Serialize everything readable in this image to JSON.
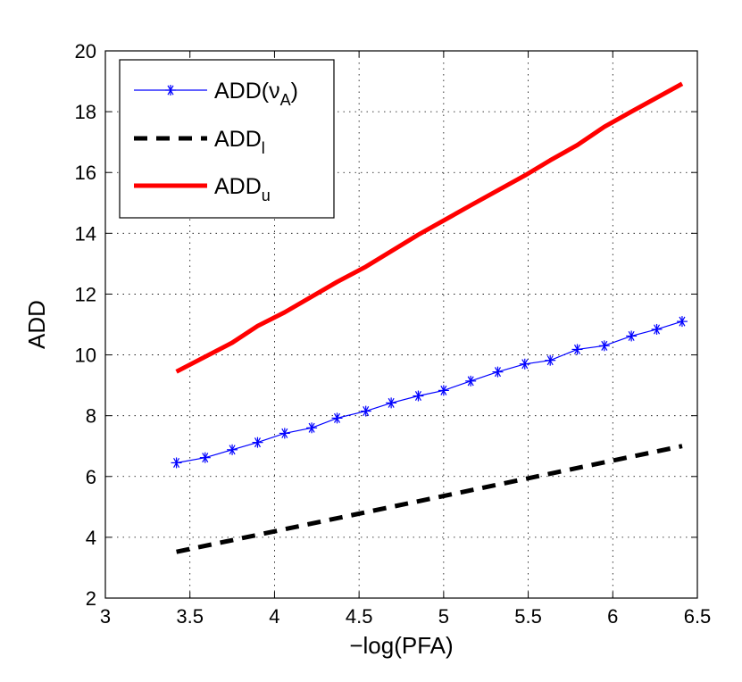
{
  "chart_data": {
    "type": "line",
    "xlabel": "−log(PFA)",
    "ylabel": "ADD",
    "xlim": [
      3,
      6.5
    ],
    "ylim": [
      2,
      20
    ],
    "xticks": [
      3,
      3.5,
      4,
      4.5,
      5,
      5.5,
      6,
      6.5
    ],
    "xtick_labels": [
      "3",
      "3.5",
      "4",
      "4.5",
      "5",
      "5.5",
      "6",
      "6.5"
    ],
    "yticks": [
      2,
      4,
      6,
      8,
      10,
      12,
      14,
      16,
      18,
      20
    ],
    "ytick_labels": [
      "2",
      "4",
      "6",
      "8",
      "10",
      "12",
      "14",
      "16",
      "18",
      "20"
    ],
    "grid": true,
    "legend_position": "top-left",
    "series": [
      {
        "name": "ADD(ν_A)",
        "legend_main": "ADD(ν",
        "legend_sub": "A",
        "legend_tail": ")",
        "color": "#0000ff",
        "line_style": "solid",
        "marker": "asterisk",
        "x": [
          3.42,
          3.59,
          3.75,
          3.9,
          4.06,
          4.22,
          4.37,
          4.54,
          4.69,
          4.85,
          5.0,
          5.16,
          5.32,
          5.48,
          5.63,
          5.79,
          5.95,
          6.11,
          6.26,
          6.41
        ],
        "y": [
          6.45,
          6.62,
          6.88,
          7.12,
          7.42,
          7.6,
          7.92,
          8.15,
          8.42,
          8.65,
          8.83,
          9.14,
          9.44,
          9.7,
          9.82,
          10.18,
          10.3,
          10.62,
          10.84,
          11.1
        ]
      },
      {
        "name": "ADD_l",
        "legend_main": "ADD",
        "legend_sub": "l",
        "legend_tail": "",
        "color": "#000000",
        "line_style": "dashed",
        "marker": "none",
        "x": [
          3.42,
          6.41
        ],
        "y": [
          3.52,
          7.0
        ]
      },
      {
        "name": "ADD_u",
        "legend_main": "ADD",
        "legend_sub": "u",
        "legend_tail": "",
        "color": "#ff0000",
        "line_style": "solid",
        "marker": "none",
        "x": [
          3.42,
          3.75,
          3.9,
          4.06,
          4.37,
          4.54,
          4.85,
          5.16,
          5.48,
          5.63,
          5.79,
          5.95,
          6.11,
          6.41
        ],
        "y": [
          9.45,
          10.4,
          10.95,
          11.4,
          12.4,
          12.9,
          13.95,
          14.92,
          15.9,
          16.4,
          16.9,
          17.5,
          18.0,
          18.92
        ]
      }
    ]
  }
}
